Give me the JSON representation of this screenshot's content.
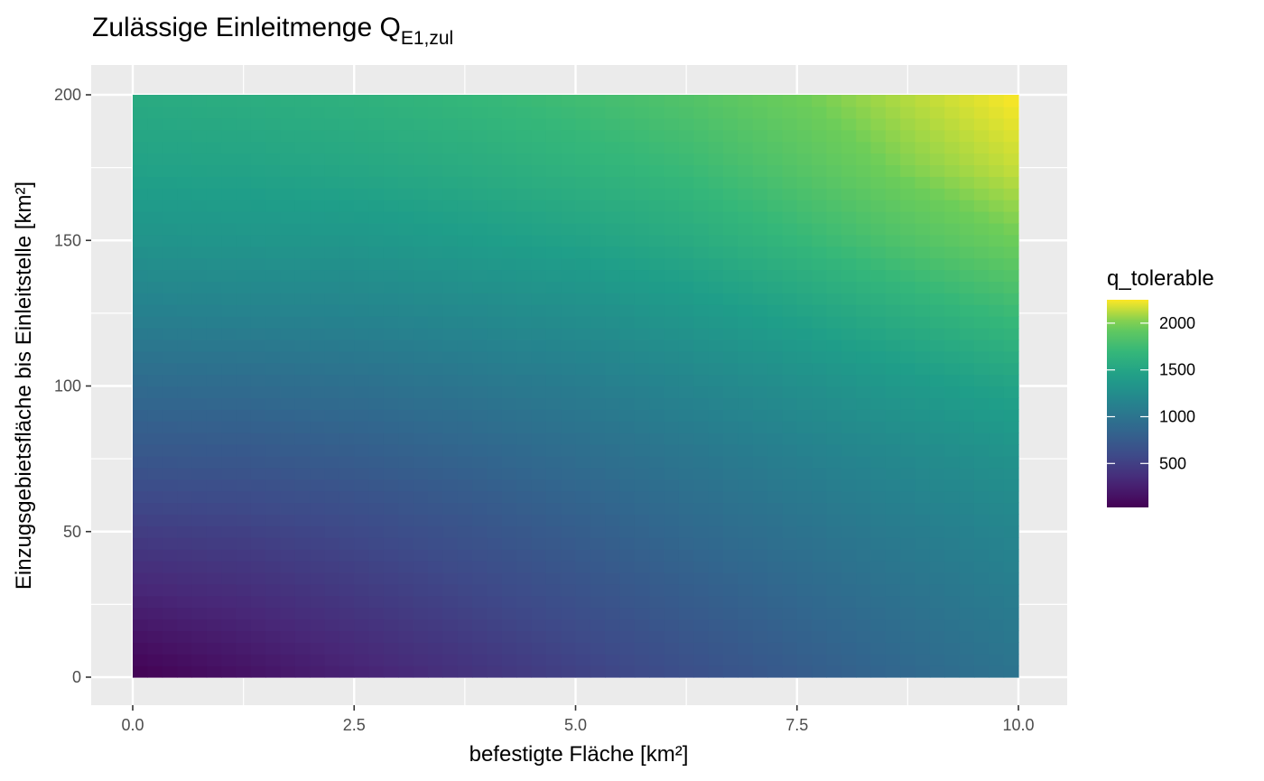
{
  "chart_data": {
    "type": "heatmap",
    "title": {
      "main": "Zulässige Einleitmenge Q",
      "subscript": "E1,zul"
    },
    "xlabel": "befestigte Fläche [km²]",
    "ylabel": "Einzugsgebietsfläche bis Einleitstelle [km²]",
    "xlim": [
      0.0,
      10.0
    ],
    "ylim": [
      0,
      200
    ],
    "x_ticks": [
      "0.0",
      "2.5",
      "5.0",
      "7.5",
      "10.0"
    ],
    "x_tick_values": [
      0.0,
      2.5,
      5.0,
      7.5,
      10.0
    ],
    "y_ticks": [
      "0",
      "50",
      "100",
      "150",
      "200"
    ],
    "y_tick_values": [
      0,
      50,
      100,
      150,
      200
    ],
    "grid": true,
    "legend": {
      "title": "q_tolerable",
      "placement": "right",
      "range": [
        30,
        2250
      ],
      "ticks": [
        "500",
        "1000",
        "1500",
        "2000"
      ],
      "tick_values": [
        500,
        1000,
        1500,
        2000
      ]
    },
    "colormap": "viridis",
    "colors": {
      "panel_bg": "#ebebeb",
      "grid": "#ffffff",
      "viridis_low": "#440154",
      "viridis_mid": "#21908c",
      "viridis_high": "#fde725"
    },
    "x": [
      0,
      1.25,
      2.5,
      3.75,
      5,
      6.25,
      7.5,
      8.75,
      10
    ],
    "y": [
      0,
      25,
      50,
      75,
      100,
      125,
      150,
      175,
      200
    ],
    "z": [
      [
        30,
        150,
        270,
        390,
        510,
        630,
        750,
        870,
        990
      ],
      [
        260,
        330,
        430,
        530,
        640,
        750,
        860,
        970,
        1080
      ],
      [
        480,
        510,
        580,
        670,
        770,
        880,
        980,
        1080,
        1180
      ],
      [
        700,
        710,
        760,
        830,
        920,
        1010,
        1110,
        1210,
        1310
      ],
      [
        900,
        910,
        950,
        1010,
        1080,
        1170,
        1270,
        1380,
        1490
      ],
      [
        1120,
        1140,
        1160,
        1210,
        1270,
        1360,
        1470,
        1600,
        1730
      ],
      [
        1320,
        1340,
        1350,
        1410,
        1470,
        1560,
        1690,
        1840,
        1980
      ],
      [
        1470,
        1480,
        1520,
        1570,
        1640,
        1720,
        1860,
        2020,
        2150
      ],
      [
        1560,
        1590,
        1630,
        1690,
        1760,
        1850,
        1980,
        2120,
        2250
      ]
    ]
  }
}
